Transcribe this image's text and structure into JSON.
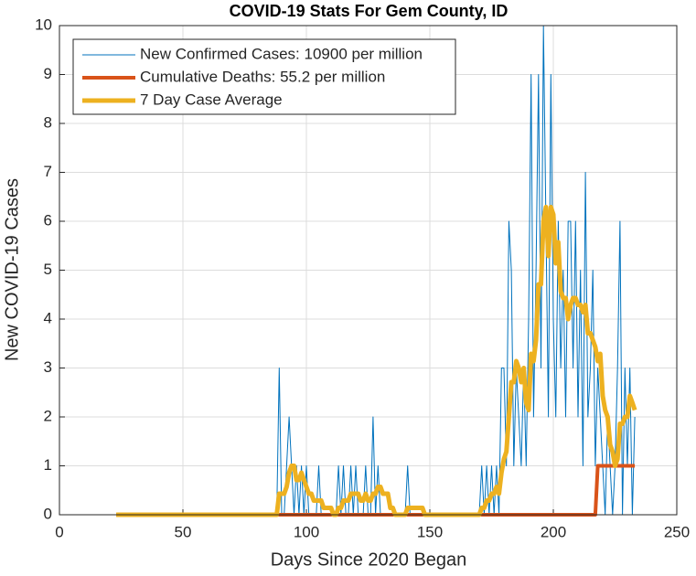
{
  "chart_data": {
    "type": "line",
    "title": "COVID-19 Stats For Gem County, ID",
    "x_label": "Days Since 2020 Began",
    "y_label": "New COVID-19 Cases",
    "x": [
      23,
      24,
      25,
      26,
      27,
      28,
      29,
      30,
      31,
      32,
      33,
      34,
      35,
      36,
      37,
      38,
      39,
      40,
      41,
      42,
      43,
      44,
      45,
      46,
      47,
      48,
      49,
      50,
      51,
      52,
      53,
      54,
      55,
      56,
      57,
      58,
      59,
      60,
      61,
      62,
      63,
      64,
      65,
      66,
      67,
      68,
      69,
      70,
      71,
      72,
      73,
      74,
      75,
      76,
      77,
      78,
      79,
      80,
      81,
      82,
      83,
      84,
      85,
      86,
      87,
      88,
      89,
      90,
      91,
      92,
      93,
      94,
      95,
      96,
      97,
      98,
      99,
      100,
      101,
      102,
      103,
      104,
      105,
      106,
      107,
      108,
      109,
      110,
      111,
      112,
      113,
      114,
      115,
      116,
      117,
      118,
      119,
      120,
      121,
      122,
      123,
      124,
      125,
      126,
      127,
      128,
      129,
      130,
      131,
      132,
      133,
      134,
      135,
      136,
      137,
      138,
      139,
      140,
      141,
      142,
      143,
      144,
      145,
      146,
      147,
      148,
      149,
      150,
      151,
      152,
      153,
      154,
      155,
      156,
      157,
      158,
      159,
      160,
      161,
      162,
      163,
      164,
      165,
      166,
      167,
      168,
      169,
      170,
      171,
      172,
      173,
      174,
      175,
      176,
      177,
      178,
      179,
      180,
      181,
      182,
      183,
      184,
      185,
      186,
      187,
      188,
      189,
      190,
      191,
      192,
      193,
      194,
      195,
      196,
      197,
      198,
      199,
      200,
      201,
      202,
      203,
      204,
      205,
      206,
      207,
      208,
      209,
      210,
      211,
      212,
      213,
      214,
      215,
      216,
      217,
      218,
      219,
      220,
      221,
      222,
      223,
      224,
      225,
      226,
      227,
      228,
      229,
      230,
      231,
      232,
      233
    ],
    "series": [
      {
        "name": "New Confirmed Cases: 10900 per million",
        "color": "#0072bd",
        "values": [
          0,
          0,
          0,
          0,
          0,
          0,
          0,
          0,
          0,
          0,
          0,
          0,
          0,
          0,
          0,
          0,
          0,
          0,
          0,
          0,
          0,
          0,
          0,
          0,
          0,
          0,
          0,
          0,
          0,
          0,
          0,
          0,
          0,
          0,
          0,
          0,
          0,
          0,
          0,
          0,
          0,
          0,
          0,
          0,
          0,
          0,
          0,
          0,
          0,
          0,
          0,
          0,
          0,
          0,
          0,
          0,
          0,
          0,
          0,
          0,
          0,
          0,
          0,
          0,
          0,
          0,
          3,
          0,
          0,
          1,
          2,
          1,
          0,
          1,
          0,
          1,
          0,
          1,
          0,
          0,
          0,
          0,
          1,
          0,
          0,
          0,
          0,
          0,
          0,
          0,
          1,
          0,
          1,
          0,
          0,
          1,
          0,
          1,
          0,
          0,
          0,
          1,
          0,
          0,
          2,
          0,
          1,
          0,
          0,
          0,
          0,
          0,
          0,
          0,
          0,
          0,
          0,
          0,
          1,
          0,
          0,
          0,
          0,
          0,
          0,
          0,
          0,
          0,
          0,
          0,
          0,
          0,
          0,
          0,
          0,
          0,
          0,
          0,
          0,
          0,
          0,
          0,
          0,
          0,
          0,
          0,
          0,
          0,
          1,
          0,
          1,
          0,
          1,
          0,
          1,
          0,
          3,
          3,
          1,
          6,
          5,
          1,
          3,
          2,
          1,
          3,
          1,
          4,
          9,
          2,
          5,
          9,
          3,
          10,
          6,
          2,
          9,
          4,
          2,
          6,
          3,
          5,
          2,
          6,
          6,
          3,
          6,
          2,
          5,
          1,
          7,
          2,
          3,
          5,
          1,
          3,
          2,
          1,
          0,
          2,
          1,
          0,
          1,
          3,
          6,
          0,
          3,
          1,
          3,
          0,
          2
        ]
      },
      {
        "name": "Cumulative Deaths: 55.2 per million",
        "color": "#d95319",
        "values": [
          0,
          0,
          0,
          0,
          0,
          0,
          0,
          0,
          0,
          0,
          0,
          0,
          0,
          0,
          0,
          0,
          0,
          0,
          0,
          0,
          0,
          0,
          0,
          0,
          0,
          0,
          0,
          0,
          0,
          0,
          0,
          0,
          0,
          0,
          0,
          0,
          0,
          0,
          0,
          0,
          0,
          0,
          0,
          0,
          0,
          0,
          0,
          0,
          0,
          0,
          0,
          0,
          0,
          0,
          0,
          0,
          0,
          0,
          0,
          0,
          0,
          0,
          0,
          0,
          0,
          0,
          0,
          0,
          0,
          0,
          0,
          0,
          0,
          0,
          0,
          0,
          0,
          0,
          0,
          0,
          0,
          0,
          0,
          0,
          0,
          0,
          0,
          0,
          0,
          0,
          0,
          0,
          0,
          0,
          0,
          0,
          0,
          0,
          0,
          0,
          0,
          0,
          0,
          0,
          0,
          0,
          0,
          0,
          0,
          0,
          0,
          0,
          0,
          0,
          0,
          0,
          0,
          0,
          0,
          0,
          0,
          0,
          0,
          0,
          0,
          0,
          0,
          0,
          0,
          0,
          0,
          0,
          0,
          0,
          0,
          0,
          0,
          0,
          0,
          0,
          0,
          0,
          0,
          0,
          0,
          0,
          0,
          0,
          0,
          0,
          0,
          0,
          0,
          0,
          0,
          0,
          0,
          0,
          0,
          0,
          0,
          0,
          0,
          0,
          0,
          0,
          0,
          0,
          0,
          0,
          0,
          0,
          0,
          0,
          0,
          0,
          0,
          0,
          0,
          0,
          0,
          0,
          0,
          0,
          0,
          0,
          0,
          0,
          0,
          0,
          0,
          0,
          0,
          0,
          0,
          1,
          1,
          1,
          1,
          1,
          1,
          1,
          1,
          1,
          1,
          1,
          1,
          1,
          1,
          1,
          1
        ]
      },
      {
        "name": "7 Day Case Average",
        "color": "#edb120",
        "values": [
          0,
          0,
          0,
          0,
          0,
          0,
          0,
          0,
          0,
          0,
          0,
          0,
          0,
          0,
          0,
          0,
          0,
          0,
          0,
          0,
          0,
          0,
          0,
          0,
          0,
          0,
          0,
          0,
          0,
          0,
          0,
          0,
          0,
          0,
          0,
          0,
          0,
          0,
          0,
          0,
          0,
          0,
          0,
          0,
          0,
          0,
          0,
          0,
          0,
          0,
          0,
          0,
          0,
          0,
          0,
          0,
          0,
          0,
          0,
          0,
          0,
          0,
          0,
          0,
          0,
          0,
          0.43,
          0.43,
          0.43,
          0.57,
          0.86,
          1,
          1,
          0.71,
          0.71,
          0.86,
          0.71,
          0.57,
          0.43,
          0.43,
          0.29,
          0.29,
          0.29,
          0.29,
          0.14,
          0.14,
          0.14,
          0.14,
          0,
          0,
          0.14,
          0.14,
          0.29,
          0.29,
          0.29,
          0.43,
          0.43,
          0.43,
          0.43,
          0.29,
          0.29,
          0.43,
          0.29,
          0.29,
          0.43,
          0.43,
          0.57,
          0.57,
          0.43,
          0.43,
          0.43,
          0.14,
          0.14,
          0,
          0,
          0,
          0,
          0,
          0.14,
          0.14,
          0.14,
          0.14,
          0.14,
          0.14,
          0.14,
          0,
          0,
          0,
          0,
          0,
          0,
          0,
          0,
          0,
          0,
          0,
          0,
          0,
          0,
          0,
          0,
          0,
          0,
          0,
          0,
          0,
          0,
          0,
          0.14,
          0.14,
          0.29,
          0.29,
          0.43,
          0.43,
          0.57,
          0.43,
          0.86,
          1.14,
          1.29,
          2,
          2.71,
          2.71,
          3.14,
          3,
          2.71,
          3,
          2.29,
          2.14,
          3.29,
          3.14,
          3.57,
          4.71,
          4.71,
          6,
          6.29,
          5.29,
          6.29,
          6.14,
          5.14,
          5.57,
          4.57,
          4.43,
          4.43,
          4,
          4.29,
          4.43,
          4.43,
          4.29,
          4.29,
          4.14,
          4.29,
          3.71,
          3.71,
          3.57,
          3.43,
          3.14,
          3.29,
          2.43,
          2.14,
          2,
          1.43,
          1.29,
          1,
          1.14,
          1.86,
          1.86,
          2,
          2,
          2.43,
          2.29,
          2.14
        ]
      }
    ],
    "xlim": [
      0,
      250
    ],
    "xticks": [
      0,
      50,
      100,
      150,
      200,
      250
    ],
    "ylim": [
      0,
      10
    ],
    "yticks": [
      0,
      1,
      2,
      3,
      4,
      5,
      6,
      7,
      8,
      9,
      10
    ],
    "grid": true,
    "legend": "upper left"
  }
}
